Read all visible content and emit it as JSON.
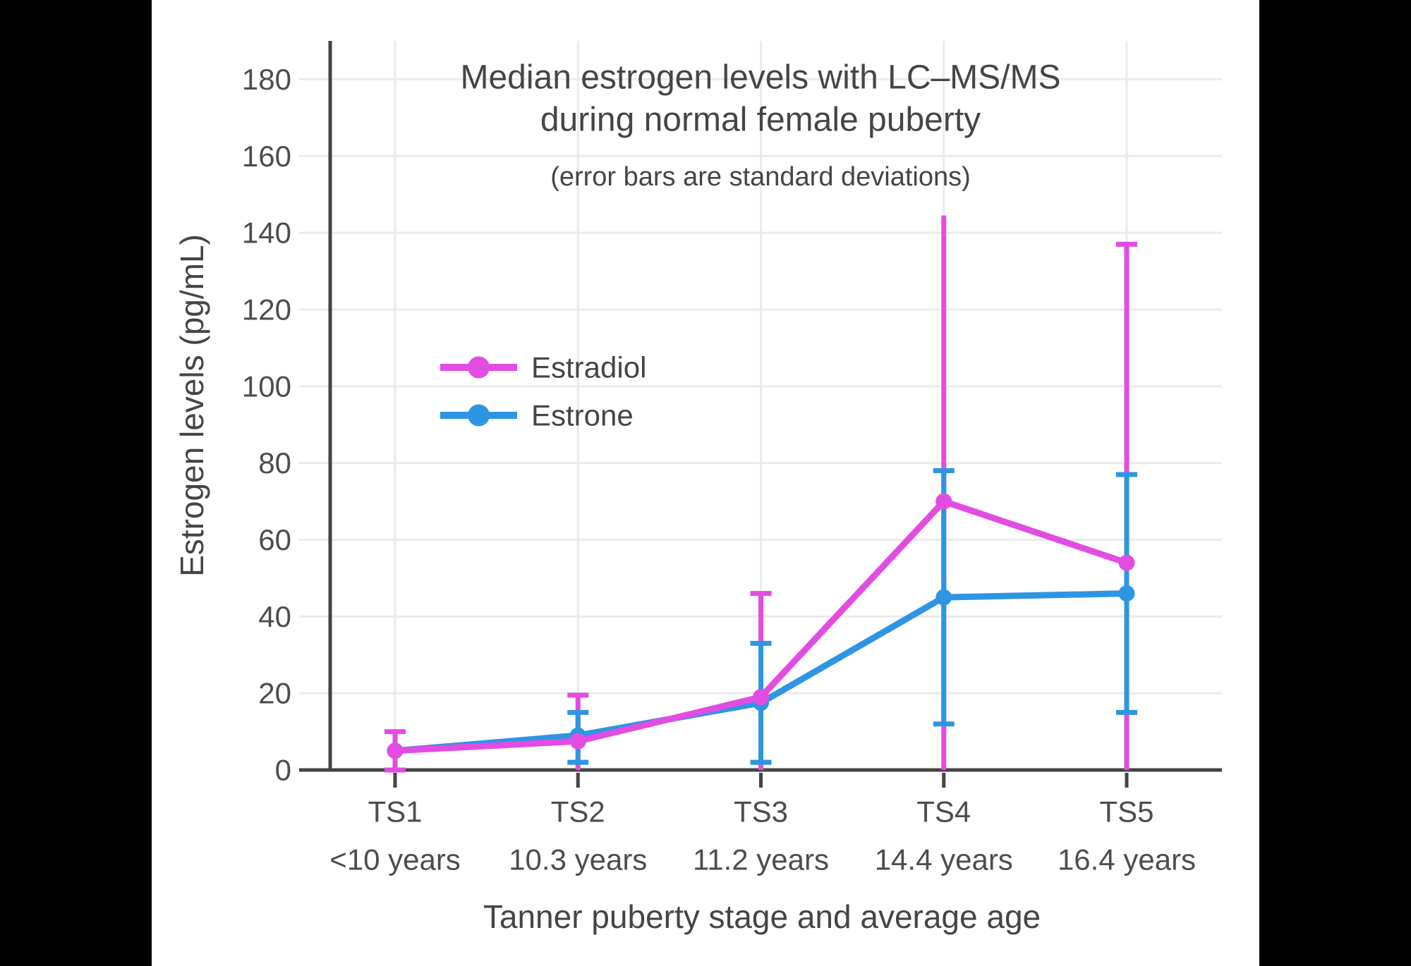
{
  "figure": {
    "background": "#ffffff",
    "letterbox_color": "#000000"
  },
  "colors": {
    "axis": "#444444",
    "grid": "#ebebeb",
    "tick_label": "#4d4d4d",
    "text": "#454545",
    "estradiol": "#E24CE2",
    "estrone": "#2E95E3"
  },
  "chart_data": {
    "type": "line",
    "title_line1": "Median estrogen levels with LC–MS/MS",
    "title_line2": "during normal female puberty",
    "subtitle": "(error bars are standard deviations)",
    "xlabel": "Tanner puberty stage and average age",
    "ylabel": "Estrogen levels (pg/mL)",
    "ylim": [
      0,
      190
    ],
    "yticks": [
      0,
      20,
      40,
      60,
      80,
      100,
      120,
      140,
      160,
      180
    ],
    "grid": true,
    "legend_position": "inside-upper-left",
    "categories": [
      "TS1",
      "TS2",
      "TS3",
      "TS4",
      "TS5"
    ],
    "category_ages": [
      "<10 years",
      "10.3 years",
      "11.2 years",
      "14.4 years",
      "16.4 years"
    ],
    "series": [
      {
        "name": "Estradiol",
        "color": "#E24CE2",
        "values": [
          5,
          7.5,
          19,
          70,
          54
        ],
        "error_bars": [
          {
            "low": 0,
            "high": 10,
            "cap_low": true,
            "cap_high": true
          },
          {
            "low": 0,
            "high": 19.5,
            "cap_low": false,
            "cap_high": true
          },
          {
            "low": 0,
            "high": 46,
            "cap_low": false,
            "cap_high": true
          },
          {
            "low": 0,
            "high": 144.5,
            "cap_low": false,
            "cap_high": false
          },
          {
            "low": 0,
            "high": 137,
            "cap_low": false,
            "cap_high": true
          }
        ]
      },
      {
        "name": "Estrone",
        "color": "#2E95E3",
        "values": [
          5,
          9,
          17.5,
          45,
          46
        ],
        "error_bars": [
          null,
          {
            "low": 2,
            "high": 15,
            "cap_low": true,
            "cap_high": true
          },
          {
            "low": 2,
            "high": 33,
            "cap_low": true,
            "cap_high": true
          },
          {
            "low": 12,
            "high": 78,
            "cap_low": true,
            "cap_high": true
          },
          {
            "low": 15,
            "high": 77,
            "cap_low": true,
            "cap_high": true
          }
        ]
      }
    ]
  }
}
